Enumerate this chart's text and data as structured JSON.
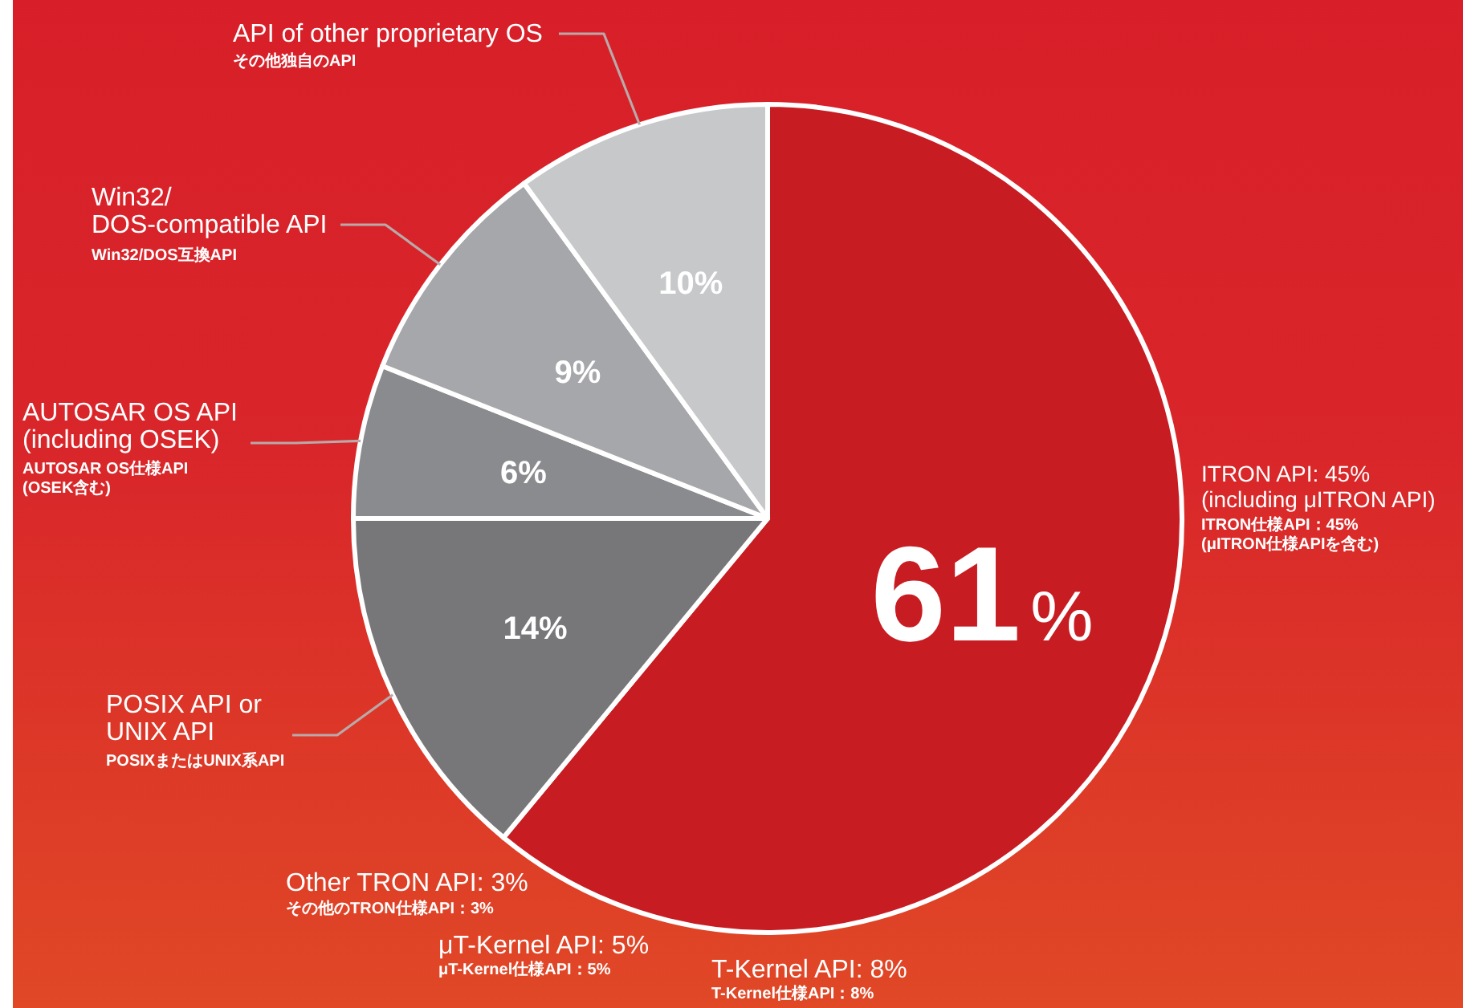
{
  "chart_data": {
    "type": "pie",
    "categories": [
      null,
      "POSIX API or\nUNIX API",
      "AUTOSAR OS API\n(including OSEK)",
      "Win32/\nDOS-compatible API",
      "API of other proprietary OS"
    ],
    "values": [
      61,
      14,
      6,
      9,
      10
    ],
    "value_labels": [
      "61%",
      "14%",
      "6%",
      "9%",
      "10%"
    ],
    "colors": [
      "#c81c23",
      "#77777a",
      "#8a8b8e",
      "#a6a7aa",
      "#c7c8ca"
    ],
    "annotations": [
      "POSIXまたはUNIX系API",
      "AUTOSAR OS仕様API\n(OSEK含む)",
      "Win32/DOS互換API",
      "その他独自のAPI",
      "ITRON API: 45%\n(including μITRON API)",
      "ITRON仕様API：45%\n(μITRON仕様APIを含む)",
      "Other TRON API: 3%",
      "その他のTRON仕様API：3%",
      "μT-Kernel API: 5%",
      "μT-Kernel仕様API：5%",
      "T-Kernel API: 8%",
      "T-Kernel仕様API：8%"
    ]
  }
}
